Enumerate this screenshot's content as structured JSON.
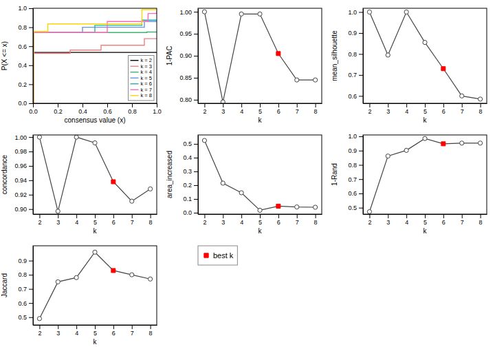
{
  "chart_data": [
    {
      "type": "step",
      "xlabel": "consensus value (x)",
      "ylabel": "P(X <= x)",
      "xlim": [
        0,
        1
      ],
      "ylim": [
        0,
        1
      ],
      "xticks": [
        {
          "value": 0,
          "label": "0.0"
        },
        0.2,
        0.4,
        0.6,
        0.8,
        {
          "value": 1,
          "label": "1.0"
        }
      ],
      "yticks": [
        {
          "value": 0,
          "label": "0.0"
        },
        0.2,
        0.4,
        0.6,
        0.8,
        {
          "value": 1,
          "label": "1.0"
        }
      ],
      "legend": "lower right",
      "series": [
        {
          "name": "k = 2",
          "color": "black",
          "x": [
            0,
            0.005,
            1
          ],
          "values": [
            0,
            0.535,
            0.535
          ]
        },
        {
          "name": "k = 3",
          "color": "#F08080",
          "x": [
            0,
            0.005,
            0.005,
            0.3,
            0.3,
            0.55,
            0.55,
            0.9,
            0.9,
            1
          ],
          "values": [
            0,
            0,
            0.525,
            0.525,
            0.56,
            0.56,
            0.61,
            0.61,
            0.68,
            0.68
          ]
        },
        {
          "name": "k = 4",
          "color": "#3CB371",
          "x": [
            0,
            0.005,
            0.005,
            0.92,
            0.92,
            1
          ],
          "values": [
            0,
            0,
            0.745,
            0.745,
            0.75,
            0.75
          ]
        },
        {
          "name": "k = 5",
          "color": "#6495ED",
          "x": [
            0,
            0.005,
            0.005,
            0.4,
            0.4,
            0.9,
            0.9,
            1
          ],
          "values": [
            0,
            0,
            0.745,
            0.745,
            0.8,
            0.8,
            0.86,
            0.86
          ]
        },
        {
          "name": "k = 6",
          "color": "#20B2AA",
          "x": [
            0,
            0.005,
            0.005,
            0.5,
            0.5,
            0.88,
            0.88,
            1
          ],
          "values": [
            0,
            0,
            0.745,
            0.745,
            0.82,
            0.82,
            0.875,
            0.875
          ]
        },
        {
          "name": "k = 7",
          "color": "#FF69B4",
          "x": [
            0,
            0.005,
            0.005,
            0.6,
            0.6,
            0.93,
            0.93,
            1
          ],
          "values": [
            0,
            0,
            0.745,
            0.745,
            0.86,
            0.86,
            0.945,
            0.97
          ]
        },
        {
          "name": "k = 8",
          "color": "#FFD700",
          "x": [
            0,
            0.005,
            0.005,
            0.12,
            0.12,
            0.88,
            0.88,
            1
          ],
          "values": [
            0,
            0,
            0.755,
            0.755,
            0.835,
            0.835,
            0.985,
            1
          ]
        }
      ]
    },
    {
      "type": "line",
      "xlabel": "k",
      "ylabel": "1-PAC",
      "color": "#444444",
      "marker": "circle",
      "x": [
        2,
        3,
        4,
        5,
        6,
        7,
        8
      ],
      "values": [
        1,
        0.795,
        0.995,
        0.995,
        0.905,
        0.845,
        0.845
      ],
      "xlim": [
        1.65,
        8.35
      ],
      "xticks": [
        2,
        3,
        4,
        5,
        6,
        7,
        8
      ],
      "ylim": [
        0.792,
        1.008
      ],
      "yticks": [
        {
          "value": 0.8,
          "label": "0.80"
        },
        0.85,
        {
          "value": 0.9,
          "label": "0.90"
        },
        0.95,
        {
          "value": 1,
          "label": "1.00"
        }
      ],
      "best": {
        "x": 6,
        "value": 0.905,
        "color": "red",
        "marker": "square"
      }
    },
    {
      "type": "line",
      "xlabel": "k",
      "ylabel": "mean_silhouette",
      "color": "#444444",
      "marker": "circle",
      "x": [
        2,
        3,
        4,
        5,
        6,
        7,
        8
      ],
      "values": [
        1,
        0.795,
        1,
        0.855,
        0.73,
        0.6,
        0.585
      ],
      "xlim": [
        1.65,
        8.35
      ],
      "xticks": [
        2,
        3,
        4,
        5,
        6,
        7,
        8
      ],
      "ylim": [
        0.565,
        1.018
      ],
      "yticks": [
        0.6,
        0.7,
        0.8,
        0.9,
        {
          "value": 1,
          "label": "1.0"
        }
      ],
      "best": {
        "x": 6,
        "value": 0.73,
        "color": "red",
        "marker": "square"
      }
    },
    {
      "type": "line",
      "xlabel": "k",
      "ylabel": "concordance",
      "color": "#444444",
      "marker": "circle",
      "x": [
        2,
        3,
        4,
        5,
        6,
        7,
        8
      ],
      "values": [
        1,
        0.897,
        1,
        0.992,
        0.938,
        0.911,
        0.928
      ],
      "xlim": [
        1.65,
        8.35
      ],
      "xticks": [
        2,
        3,
        4,
        5,
        6,
        7,
        8
      ],
      "ylim": [
        0.893,
        1.003
      ],
      "yticks": [
        {
          "value": 0.9,
          "label": "0.90"
        },
        0.92,
        0.94,
        0.96,
        0.98,
        {
          "value": 1,
          "label": "1.00"
        }
      ],
      "best": {
        "x": 6,
        "value": 0.938,
        "color": "red",
        "marker": "square"
      }
    },
    {
      "type": "line",
      "xlabel": "k",
      "ylabel": "area_increased",
      "color": "#444444",
      "marker": "circle",
      "x": [
        2,
        3,
        4,
        5,
        6,
        7,
        8
      ],
      "values": [
        0.525,
        0.215,
        0.145,
        0.018,
        0.048,
        0.042,
        0.04
      ],
      "xlim": [
        1.65,
        8.35
      ],
      "xticks": [
        2,
        3,
        4,
        5,
        6,
        7,
        8
      ],
      "ylim": [
        -0.01,
        0.565
      ],
      "yticks": [
        {
          "value": 0,
          "label": "0.0"
        },
        0.1,
        0.2,
        0.3,
        0.4,
        0.5
      ],
      "best": {
        "x": 6,
        "value": 0.048,
        "color": "red",
        "marker": "square"
      }
    },
    {
      "type": "line",
      "xlabel": "k",
      "ylabel": "1-Rand",
      "color": "#444444",
      "marker": "circle",
      "x": [
        2,
        3,
        4,
        5,
        6,
        7,
        8
      ],
      "values": [
        0.472,
        0.862,
        0.902,
        0.985,
        0.948,
        0.953,
        0.953
      ],
      "xlim": [
        1.65,
        8.35
      ],
      "xticks": [
        2,
        3,
        4,
        5,
        6,
        7,
        8
      ],
      "ylim": [
        0.455,
        1.01
      ],
      "yticks": [
        0.5,
        0.6,
        0.7,
        0.8,
        0.9,
        {
          "value": 1,
          "label": "1.0"
        }
      ],
      "best": {
        "x": 6,
        "value": 0.948,
        "color": "red",
        "marker": "square"
      }
    },
    {
      "type": "line",
      "xlabel": "k",
      "ylabel": "Jaccard",
      "color": "#444444",
      "marker": "circle",
      "x": [
        2,
        3,
        4,
        5,
        6,
        7,
        8
      ],
      "values": [
        0.49,
        0.75,
        0.78,
        0.96,
        0.83,
        0.8,
        0.77
      ],
      "xlim": [
        1.65,
        8.35
      ],
      "xticks": [
        2,
        3,
        4,
        5,
        6,
        7,
        8
      ],
      "ylim": [
        0.445,
        1.005
      ],
      "yticks": [
        0.5,
        0.6,
        0.7,
        0.8,
        0.9
      ],
      "best": {
        "x": 6,
        "value": 0.83,
        "color": "red",
        "marker": "square"
      }
    },
    {
      "type": "legend",
      "legend": "upper left",
      "series": [
        {
          "name": "best k",
          "color": "red",
          "marker": "square"
        }
      ]
    }
  ]
}
